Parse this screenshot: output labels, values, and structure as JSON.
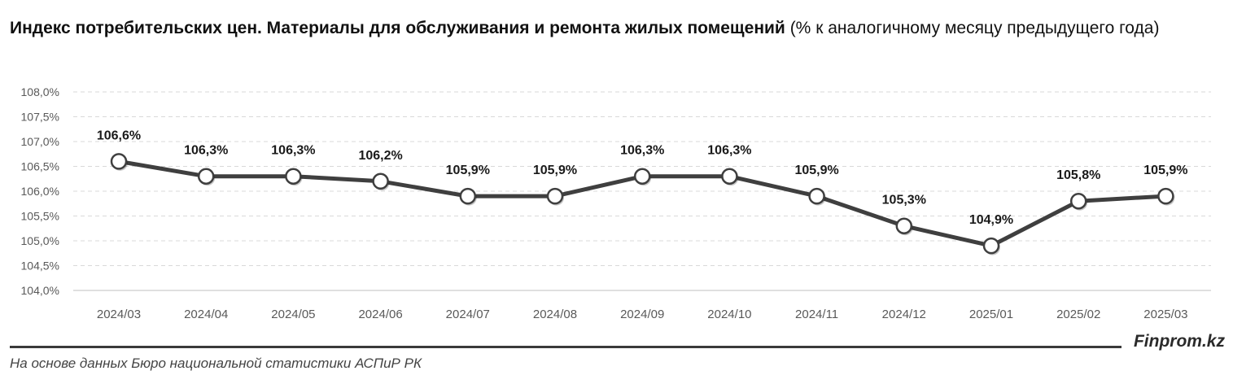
{
  "header": {
    "title_bold": "Индекс потребительских цен. Материалы для обслуживания и ремонта жилых помещений",
    "title_normal": "(% к аналогичному месяцу предыдущего года)"
  },
  "footer": {
    "brand": "Finprom.kz",
    "source": "На основе данных Бюро национальной статистики АСПиР РК"
  },
  "chart_data": {
    "type": "line",
    "title": "Индекс потребительских цен. Материалы для обслуживания и ремонта жилых помещений (% к аналогичному месяцу предыдущего года)",
    "categories": [
      "2024/03",
      "2024/04",
      "2024/05",
      "2024/06",
      "2024/07",
      "2024/08",
      "2024/09",
      "2024/10",
      "2024/11",
      "2024/12",
      "2025/01",
      "2025/02",
      "2025/03"
    ],
    "series": [
      {
        "values": [
          106.6,
          106.3,
          106.3,
          106.2,
          105.9,
          105.9,
          106.3,
          106.3,
          105.9,
          105.3,
          104.9,
          105.8,
          105.9
        ],
        "labels": [
          "106,6%",
          "106,3%",
          "106,3%",
          "106,2%",
          "105,9%",
          "105,9%",
          "106,3%",
          "106,3%",
          "105,9%",
          "105,3%",
          "104,9%",
          "105,8%",
          "105,9%"
        ]
      }
    ],
    "ylim": [
      104.0,
      108.0
    ],
    "yticks": [
      104.0,
      104.5,
      105.0,
      105.5,
      106.0,
      106.5,
      107.0,
      107.5,
      108.0
    ],
    "ytick_labels": [
      "104,0%",
      "104,5%",
      "105,0%",
      "105,5%",
      "106,0%",
      "106,5%",
      "107,0%",
      "107,5%",
      "108,0%"
    ],
    "xlabel": "",
    "ylabel": "",
    "grid": true,
    "legend": "none",
    "line_color": "#3f3f3f",
    "marker_fill": "#ffffff",
    "grid_color": "#d9d9d9"
  }
}
